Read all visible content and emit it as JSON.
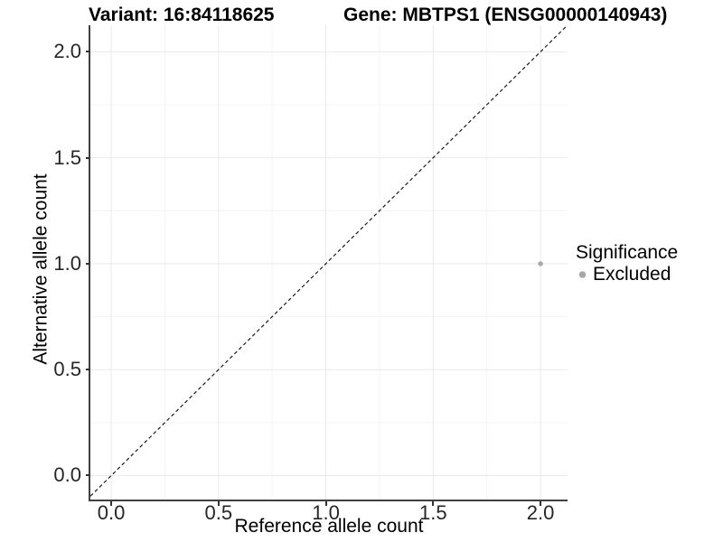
{
  "header": {
    "variant_title": "Variant: 16:84118625",
    "gene_title": "Gene: MBTPS1 (ENSG00000140943)"
  },
  "chart_data": {
    "type": "scatter",
    "xlabel": "Reference allele count",
    "ylabel": "Alternative allele count",
    "xlim": [
      -0.097,
      2.126
    ],
    "ylim": [
      -0.113,
      2.125
    ],
    "x_ticks": [
      0.0,
      0.5,
      1.0,
      1.5,
      2.0
    ],
    "y_ticks": [
      0.0,
      0.5,
      1.0,
      1.5,
      2.0
    ],
    "x_tick_labels": [
      "0.0",
      "0.5",
      "1.0",
      "1.5",
      "2.0"
    ],
    "y_tick_labels": [
      "0.0",
      "0.5",
      "1.0",
      "1.5",
      "2.0"
    ],
    "grid": {
      "major": true,
      "minor": true
    },
    "identity_line": {
      "style": "dashed",
      "slope": 1,
      "intercept": 0
    },
    "series": [
      {
        "name": "Excluded",
        "color": "#a8a8a8",
        "points": [
          {
            "x": 2.0,
            "y": 1.0
          }
        ]
      }
    ],
    "legend": {
      "title": "Significance",
      "position": "right",
      "entries": [
        {
          "label": "Excluded",
          "color": "#a8a8a8"
        }
      ]
    }
  },
  "style": {
    "major_grid_color": "#e9e9e9",
    "minor_grid_color": "#f4f4f4",
    "axis_line_color": "#404040",
    "tick_color": "#333333",
    "dashed_line_color": "#1a1a1a",
    "point_color": "#a8a8a8",
    "point_radius": 2.7,
    "legend_dot_radius": 3.8
  }
}
